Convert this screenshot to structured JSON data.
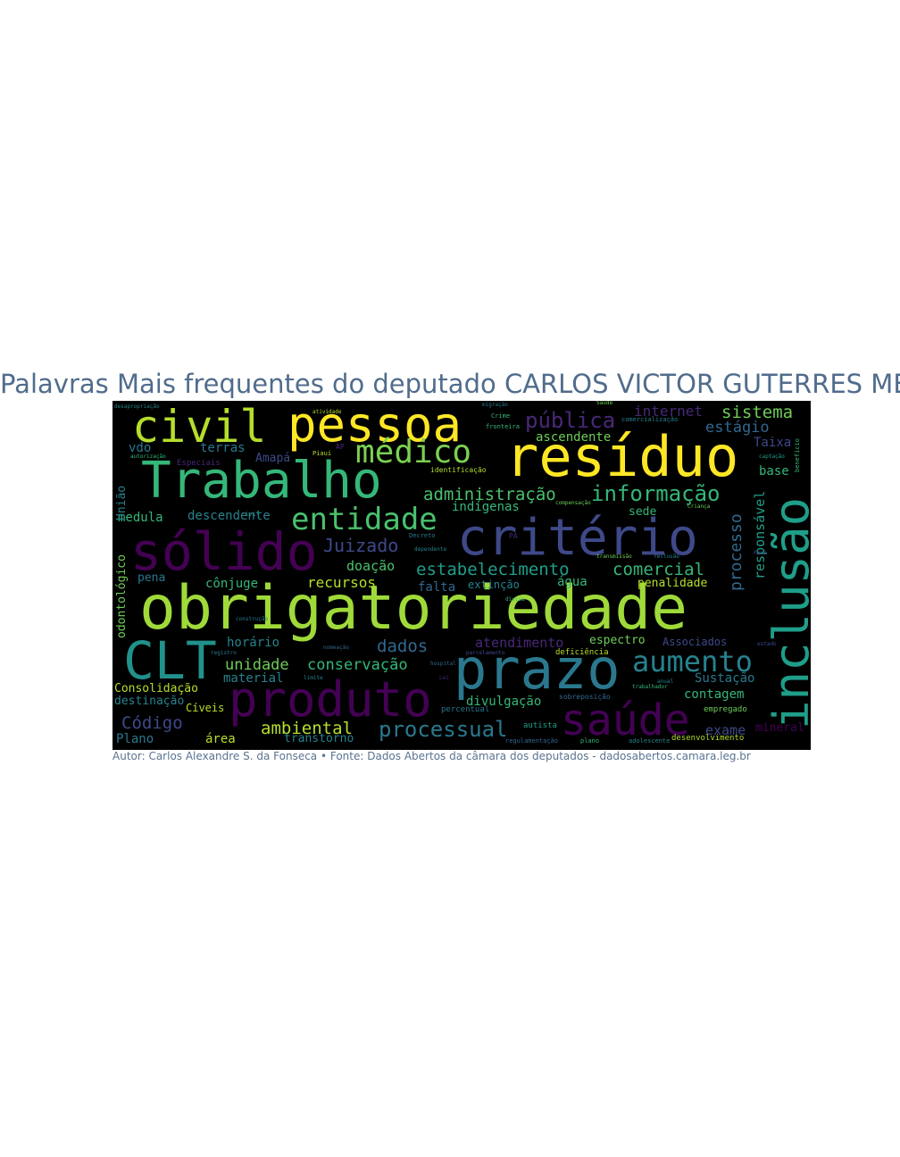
{
  "title": "Palavras Mais frequentes do deputado CARLOS VICTOR GUTERRES MENDES",
  "footer": "Autor: Carlos Alexandre S. da Fonseca • Fonte: Dados Abertos da câmara dos deputados - dadosabertos.camara.leg.br",
  "palette": [
    "#fde725",
    "#b5de2b",
    "#6ece58",
    "#35b779",
    "#1f9e89",
    "#26828e",
    "#31688e",
    "#3e4989",
    "#482878",
    "#440154"
  ],
  "words": [
    {
      "text": "obrigatoriedade",
      "color": "#9fda3a"
    },
    {
      "text": "resíduo",
      "color": "#fde725"
    },
    {
      "text": "Trabalho",
      "color": "#35b779"
    },
    {
      "text": "pessoa",
      "color": "#fde725"
    },
    {
      "text": "prazo",
      "color": "#2a788e"
    },
    {
      "text": "critério",
      "color": "#3e4989"
    },
    {
      "text": "sólido",
      "color": "#440154"
    },
    {
      "text": "produto",
      "color": "#440154"
    },
    {
      "text": "CLT",
      "color": "#21918c"
    },
    {
      "text": "civil",
      "color": "#b5de2b"
    },
    {
      "text": "inclusão",
      "color": "#1f9e89"
    },
    {
      "text": "saúde",
      "color": "#440154"
    },
    {
      "text": "médico",
      "color": "#7ad151"
    },
    {
      "text": "entidade",
      "color": "#4ac16d"
    },
    {
      "text": "aumento",
      "color": "#26828e"
    },
    {
      "text": "informação",
      "color": "#35b779"
    },
    {
      "text": "administração",
      "color": "#4ac16d"
    },
    {
      "text": "processual",
      "color": "#2a788e"
    },
    {
      "text": "pública",
      "color": "#482878"
    },
    {
      "text": "estabelecimento",
      "color": "#1f9e89"
    },
    {
      "text": "comercial",
      "color": "#35b779"
    },
    {
      "text": "ambiental",
      "color": "#b5de2b"
    },
    {
      "text": "sistema",
      "color": "#6ece58"
    },
    {
      "text": "estágio",
      "color": "#31688e"
    },
    {
      "text": "Juizado",
      "color": "#3e4989"
    },
    {
      "text": "dados",
      "color": "#31688e"
    },
    {
      "text": "unidade",
      "color": "#6ece58"
    },
    {
      "text": "conservação",
      "color": "#35b779"
    },
    {
      "text": "Código",
      "color": "#3e4989"
    },
    {
      "text": "processo",
      "color": "#31688e"
    },
    {
      "text": "responsável",
      "color": "#1f9e89"
    },
    {
      "text": "atendimento",
      "color": "#482878"
    },
    {
      "text": "recursos",
      "color": "#b5de2b"
    },
    {
      "text": "internet",
      "color": "#482878"
    },
    {
      "text": "ascendente",
      "color": "#6ece58"
    },
    {
      "text": "indígenas",
      "color": "#35b779"
    },
    {
      "text": "descendente",
      "color": "#26828e"
    },
    {
      "text": "doação",
      "color": "#4ac16d"
    },
    {
      "text": "cônjuge",
      "color": "#35b779"
    },
    {
      "text": "horário",
      "color": "#26828e"
    },
    {
      "text": "material",
      "color": "#26828e"
    },
    {
      "text": "transtorno",
      "color": "#26828e"
    },
    {
      "text": "divulgação",
      "color": "#35b779"
    },
    {
      "text": "Consolidação",
      "color": "#b5de2b"
    },
    {
      "text": "destinação",
      "color": "#26828e"
    },
    {
      "text": "espectro",
      "color": "#6ece58"
    },
    {
      "text": "Associados",
      "color": "#3e4989"
    },
    {
      "text": "penalidade",
      "color": "#b5de2b"
    },
    {
      "text": "água",
      "color": "#35b779"
    },
    {
      "text": "extinção",
      "color": "#26828e"
    },
    {
      "text": "falta",
      "color": "#31688e"
    },
    {
      "text": "sede",
      "color": "#35b779"
    },
    {
      "text": "Sustação",
      "color": "#2a788e"
    },
    {
      "text": "contagem",
      "color": "#35b779"
    },
    {
      "text": "exame",
      "color": "#3e4989"
    },
    {
      "text": "mineral",
      "color": "#440154"
    },
    {
      "text": "Taixa",
      "color": "#3e4989"
    },
    {
      "text": "base",
      "color": "#35b779"
    },
    {
      "text": "medula",
      "color": "#35b779"
    },
    {
      "text": "odontológico",
      "color": "#6ece58"
    },
    {
      "text": "União",
      "color": "#26828e"
    },
    {
      "text": "pena",
      "color": "#2a788e"
    },
    {
      "text": "terras",
      "color": "#2a788e"
    },
    {
      "text": "vdo",
      "color": "#2a788e"
    },
    {
      "text": "Amapá",
      "color": "#3e4989"
    },
    {
      "text": "Plano",
      "color": "#2a788e"
    },
    {
      "text": "área",
      "color": "#b5de2b"
    },
    {
      "text": "Cíveis",
      "color": "#b5de2b"
    },
    {
      "text": "autista",
      "color": "#1f9e89"
    },
    {
      "text": "empregado",
      "color": "#6ece58"
    },
    {
      "text": "desenvolvimento",
      "color": "#b5de2b"
    },
    {
      "text": "deficiência",
      "color": "#b5de2b"
    },
    {
      "text": "percentual",
      "color": "#2a788e"
    },
    {
      "text": "sobreposição",
      "color": "#31688e"
    },
    {
      "text": "Especiais",
      "color": "#482878"
    },
    {
      "text": "identificação",
      "color": "#b5de2b"
    },
    {
      "text": "fronteira",
      "color": "#35b779"
    },
    {
      "text": "Crime",
      "color": "#35b779"
    },
    {
      "text": "comercialização",
      "color": "#26828e"
    },
    {
      "text": "compensação",
      "color": "#6ece58"
    },
    {
      "text": "regulamentação",
      "color": "#31688e"
    },
    {
      "text": "adolescente",
      "color": "#26828e"
    },
    {
      "text": "plano",
      "color": "#35b779"
    },
    {
      "text": "atividade",
      "color": "#b5de2b"
    },
    {
      "text": "captação",
      "color": "#1f9e89"
    },
    {
      "text": "benefício",
      "color": "#35b779"
    },
    {
      "text": "Criança",
      "color": "#6ece58"
    },
    {
      "text": "Pará",
      "color": "#3e4989"
    },
    {
      "text": "dependente",
      "color": "#26828e"
    },
    {
      "text": "Decreto",
      "color": "#2a788e"
    },
    {
      "text": "Piauí",
      "color": "#b5de2b"
    },
    {
      "text": "AP",
      "color": "#482878"
    },
    {
      "text": "PA",
      "color": "#482878"
    },
    {
      "text": "Lei",
      "color": "#482878"
    },
    {
      "text": "limite",
      "color": "#26828e"
    },
    {
      "text": "trabalhador",
      "color": "#35b779"
    },
    {
      "text": "divisa",
      "color": "#35b779"
    },
    {
      "text": "migração",
      "color": "#2a788e"
    },
    {
      "text": "transmissão",
      "color": "#6ece58"
    },
    {
      "text": "reclusão",
      "color": "#26828e"
    },
    {
      "text": "estado",
      "color": "#3e4989"
    },
    {
      "text": "anual",
      "color": "#26828e"
    },
    {
      "text": "Saúde",
      "color": "#6ece58"
    },
    {
      "text": "nomeação",
      "color": "#31688e"
    },
    {
      "text": "construção",
      "color": "#2a788e"
    },
    {
      "text": "registro",
      "color": "#2a788e"
    },
    {
      "text": "desapropriação",
      "color": "#26828e"
    },
    {
      "text": "autorização",
      "color": "#35b779"
    },
    {
      "text": "parcelamento",
      "color": "#3e4989"
    },
    {
      "text": "hospital",
      "color": "#31688e"
    },
    {
      "text": "civil",
      "color": "#26828e"
    }
  ]
}
